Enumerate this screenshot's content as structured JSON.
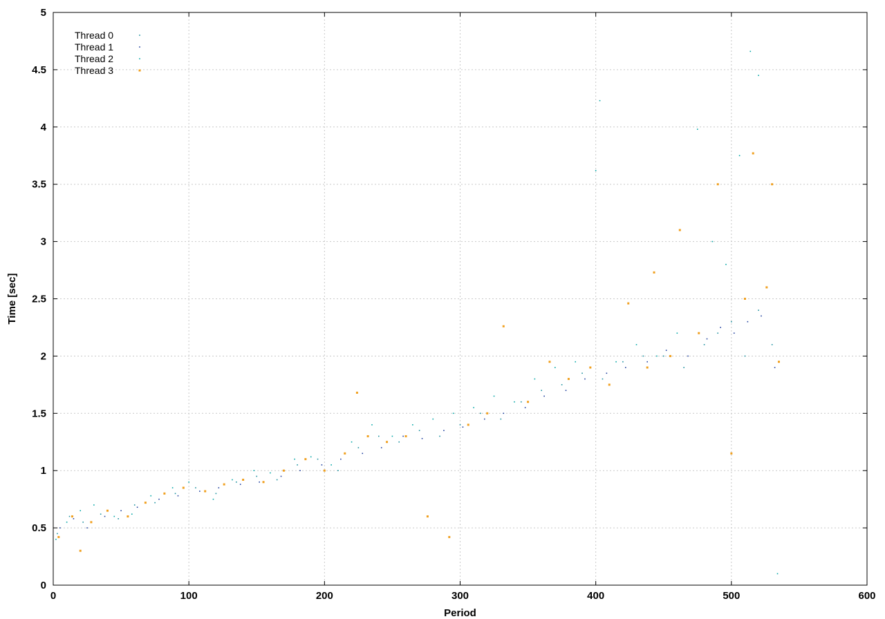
{
  "chart_data": {
    "type": "scatter",
    "title": "",
    "xlabel": "Period",
    "ylabel": "Time [sec]",
    "xlim": [
      0,
      600
    ],
    "ylim": [
      0,
      5
    ],
    "x_ticks": [
      "0",
      "100",
      "200",
      "300",
      "400",
      "500",
      "600"
    ],
    "y_ticks": [
      "0",
      "0.5",
      "1",
      "1.5",
      "2",
      "2.5",
      "3",
      "3.5",
      "4",
      "4.5",
      "5"
    ],
    "grid": true,
    "legend_position": "top-left",
    "series": [
      {
        "name": "Thread 0",
        "color": "#1a8f9e",
        "x": [
          3,
          12,
          22,
          35,
          48,
          60,
          75,
          90,
          105,
          120,
          135,
          150,
          165,
          180,
          195,
          210,
          225,
          240,
          255,
          270,
          285,
          300,
          315,
          330,
          345,
          360,
          375,
          390,
          405,
          420,
          435,
          450,
          465,
          480,
          490,
          500,
          510,
          520,
          530
        ],
        "y": [
          0.45,
          0.6,
          0.55,
          0.62,
          0.58,
          0.7,
          0.72,
          0.8,
          0.85,
          0.8,
          0.9,
          0.95,
          0.92,
          1.05,
          1.1,
          1.0,
          1.2,
          1.3,
          1.25,
          1.35,
          1.3,
          1.4,
          1.5,
          1.45,
          1.6,
          1.7,
          1.75,
          1.85,
          1.8,
          1.95,
          2.0,
          2.0,
          1.9,
          2.1,
          2.2,
          2.3,
          2.0,
          2.4,
          2.1
        ]
      },
      {
        "name": "Thread 1",
        "color": "#1f3f9e",
        "x": [
          5,
          15,
          25,
          38,
          50,
          62,
          78,
          92,
          108,
          122,
          138,
          152,
          168,
          182,
          198,
          212,
          228,
          242,
          258,
          272,
          288,
          302,
          318,
          332,
          348,
          362,
          378,
          392,
          408,
          422,
          438,
          452,
          468,
          482,
          492,
          502,
          512,
          522,
          532
        ],
        "y": [
          0.5,
          0.58,
          0.5,
          0.6,
          0.65,
          0.68,
          0.75,
          0.78,
          0.82,
          0.85,
          0.88,
          0.9,
          0.95,
          1.0,
          1.05,
          1.1,
          1.15,
          1.2,
          1.3,
          1.28,
          1.35,
          1.38,
          1.45,
          1.5,
          1.55,
          1.65,
          1.7,
          1.8,
          1.85,
          1.9,
          1.95,
          2.05,
          2.0,
          2.15,
          2.25,
          2.2,
          2.3,
          2.35,
          1.9
        ]
      },
      {
        "name": "Thread 2",
        "color": "#00a6a6",
        "x": [
          2,
          10,
          20,
          30,
          45,
          58,
          72,
          88,
          100,
          118,
          132,
          148,
          160,
          178,
          190,
          205,
          220,
          235,
          250,
          265,
          280,
          295,
          310,
          325,
          340,
          355,
          370,
          385,
          400,
          403,
          415,
          430,
          445,
          460,
          475,
          486,
          496,
          506,
          514,
          520,
          534
        ],
        "y": [
          0.4,
          0.55,
          0.65,
          0.7,
          0.6,
          0.62,
          0.78,
          0.85,
          0.9,
          0.75,
          0.92,
          1.0,
          0.98,
          1.1,
          1.12,
          1.05,
          1.25,
          1.4,
          1.3,
          1.4,
          1.45,
          1.5,
          1.55,
          1.65,
          1.6,
          1.8,
          1.9,
          1.95,
          3.62,
          4.23,
          1.95,
          2.1,
          2.0,
          2.2,
          3.98,
          3.0,
          2.8,
          3.75,
          4.66,
          4.45,
          0.1
        ]
      },
      {
        "name": "Thread 3",
        "color": "#f0a020",
        "x": [
          4,
          14,
          20,
          28,
          40,
          55,
          68,
          82,
          96,
          112,
          126,
          140,
          155,
          170,
          186,
          200,
          215,
          224,
          232,
          246,
          260,
          276,
          292,
          306,
          320,
          332,
          350,
          366,
          380,
          396,
          410,
          424,
          438,
          443,
          455,
          462,
          476,
          490,
          500,
          510,
          516,
          526,
          530,
          535
        ],
        "y": [
          0.42,
          0.6,
          0.3,
          0.55,
          0.65,
          0.6,
          0.72,
          0.8,
          0.85,
          0.82,
          0.88,
          0.92,
          0.9,
          1.0,
          1.1,
          1.0,
          1.15,
          1.68,
          1.3,
          1.25,
          1.3,
          0.6,
          0.42,
          1.4,
          1.5,
          2.26,
          1.6,
          1.95,
          1.8,
          1.9,
          1.75,
          2.46,
          1.9,
          2.73,
          2.0,
          3.1,
          2.2,
          3.5,
          1.15,
          2.5,
          3.77,
          2.6,
          3.5,
          1.95
        ]
      }
    ]
  }
}
